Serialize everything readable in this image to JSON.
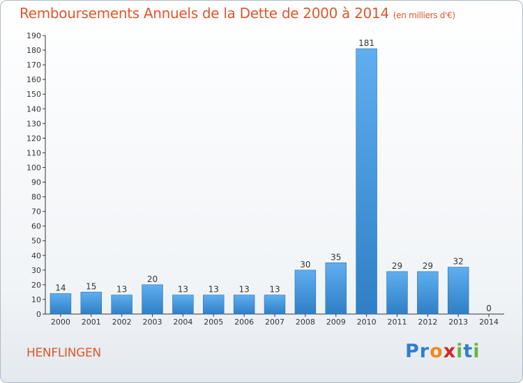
{
  "chart_data": {
    "type": "bar",
    "title": "Remboursements Annuels de la Dette de 2000 à 2014",
    "unit": "(en milliers d'€)",
    "categories": [
      "2000",
      "2001",
      "2002",
      "2003",
      "2004",
      "2005",
      "2006",
      "2007",
      "2008",
      "2009",
      "2010",
      "2011",
      "2012",
      "2013",
      "2014"
    ],
    "values": [
      14,
      15,
      13,
      20,
      13,
      13,
      13,
      13,
      30,
      35,
      181,
      29,
      29,
      32,
      0
    ],
    "ylim": [
      0,
      190
    ],
    "yticks": [
      0,
      10,
      20,
      30,
      40,
      50,
      60,
      70,
      80,
      90,
      100,
      110,
      120,
      130,
      140,
      150,
      160,
      170,
      180,
      190
    ],
    "grid": false,
    "bar_color": "#3a8fd6"
  },
  "commune": "HENFLINGEN",
  "logo": {
    "text": "Proxiti",
    "letters": [
      {
        "ch": "P",
        "color": "#2f7fd0"
      },
      {
        "ch": "r",
        "color": "#2f7fd0"
      },
      {
        "ch": "o",
        "color": "#f28a1c"
      },
      {
        "ch": "x",
        "color": "#d8232a"
      },
      {
        "ch": "i",
        "color": "#6db33f"
      },
      {
        "ch": "t",
        "color": "#2f7fd0"
      },
      {
        "ch": "i",
        "color": "#6db33f"
      }
    ]
  }
}
